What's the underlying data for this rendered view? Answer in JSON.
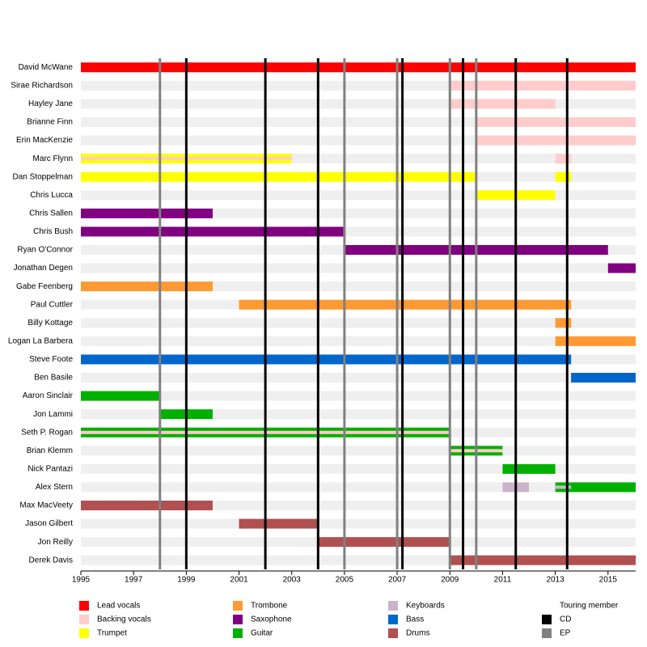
{
  "chart_data": {
    "type": "timeline",
    "xlim": [
      1995,
      2016.05
    ],
    "xticks": [
      1995,
      1997,
      1999,
      2001,
      2003,
      2005,
      2007,
      2009,
      2011,
      2013,
      2015
    ],
    "roles": [
      {
        "name": "Lead vocals",
        "color": "#ff0000"
      },
      {
        "name": "Backing vocals",
        "color": "#ffcccc"
      },
      {
        "name": "Trumpet",
        "color": "#ffff00"
      },
      {
        "name": "Trombone",
        "color": "#ff9933"
      },
      {
        "name": "Saxophone",
        "color": "#800080"
      },
      {
        "name": "Guitar",
        "color": "#00b000"
      },
      {
        "name": "Keyboards",
        "color": "#ccb3cc"
      },
      {
        "name": "Bass",
        "color": "#0066cc"
      },
      {
        "name": "Drums",
        "color": "#b05050"
      }
    ],
    "legend_header": "Touring member",
    "releases": [
      {
        "name": "CD",
        "color": "#000000",
        "dates": [
          1999,
          2002,
          2004,
          2007.2,
          2009.5,
          2011.5,
          2013.45
        ]
      },
      {
        "name": "EP",
        "color": "#808080",
        "dates": [
          1998,
          2005,
          2007,
          2009,
          2010
        ]
      }
    ],
    "members": [
      {
        "name": "David McWane",
        "bars": [
          {
            "role": "Lead vocals",
            "start": 1995,
            "end": 2016.05
          }
        ]
      },
      {
        "name": "Sirae Richardson",
        "bars": [
          {
            "role": "Backing vocals",
            "start": 2009,
            "end": 2016.05
          }
        ]
      },
      {
        "name": "Hayley Jane",
        "bars": [
          {
            "role": "Backing vocals",
            "start": 2009,
            "end": 2013
          }
        ]
      },
      {
        "name": "Brianne Finn",
        "bars": [
          {
            "role": "Backing vocals",
            "start": 2010,
            "end": 2016.05
          }
        ]
      },
      {
        "name": "Erin MacKenzie",
        "bars": [
          {
            "role": "Backing vocals",
            "start": 2010,
            "end": 2016.05
          }
        ]
      },
      {
        "name": "Marc Flynn",
        "bars": [
          {
            "role": "Trumpet",
            "stripe": "Backing vocals",
            "start": 1995,
            "end": 2003
          },
          {
            "role": "Backing vocals",
            "start": 2013,
            "end": 2013.6
          }
        ]
      },
      {
        "name": "Dan Stoppelman",
        "bars": [
          {
            "role": "Trumpet",
            "start": 1995,
            "end": 2010
          },
          {
            "role": "Trumpet",
            "start": 2013,
            "end": 2013.6
          }
        ]
      },
      {
        "name": "Chris Lucca",
        "bars": [
          {
            "role": "Trumpet",
            "start": 2010,
            "end": 2013
          }
        ]
      },
      {
        "name": "Chris Sallen",
        "bars": [
          {
            "role": "Saxophone",
            "start": 1995,
            "end": 2000
          }
        ]
      },
      {
        "name": "Chris Bush",
        "bars": [
          {
            "role": "Saxophone",
            "start": 1995,
            "end": 2005
          }
        ]
      },
      {
        "name": "Ryan O'Connor",
        "bars": [
          {
            "role": "Saxophone",
            "start": 2005,
            "end": 2015
          }
        ]
      },
      {
        "name": "Jonathan Degen",
        "bars": [
          {
            "role": "Saxophone",
            "start": 2015,
            "end": 2016.05
          }
        ]
      },
      {
        "name": "Gabe Feenberg",
        "bars": [
          {
            "role": "Trombone",
            "start": 1995,
            "end": 2000
          }
        ]
      },
      {
        "name": "Paul Cuttler",
        "bars": [
          {
            "role": "Trombone",
            "start": 2001,
            "end": 2013.6
          }
        ]
      },
      {
        "name": "Billy Kottage",
        "bars": [
          {
            "role": "Trombone",
            "start": 2013,
            "end": 2013.6
          }
        ]
      },
      {
        "name": "Logan La Barbera",
        "bars": [
          {
            "role": "Trombone",
            "start": 2013,
            "end": 2016.05
          }
        ]
      },
      {
        "name": "Steve Foote",
        "bars": [
          {
            "role": "Bass",
            "start": 1995,
            "end": 2013.6
          }
        ]
      },
      {
        "name": "Ben Basile",
        "bars": [
          {
            "role": "Bass",
            "start": 2013.6,
            "end": 2016.05
          }
        ]
      },
      {
        "name": "Aaron Sinclair",
        "bars": [
          {
            "role": "Guitar",
            "start": 1995,
            "end": 1998
          }
        ]
      },
      {
        "name": "Jon Lammi",
        "bars": [
          {
            "role": "Guitar",
            "start": 1998,
            "end": 2000
          }
        ]
      },
      {
        "name": "Seth P. Rogan",
        "bars": [
          {
            "role": "Guitar",
            "stripe": "Backing vocals",
            "start": 1995,
            "end": 2009
          }
        ]
      },
      {
        "name": "Brian Klemm",
        "bars": [
          {
            "role": "Guitar",
            "stripe": "Backing vocals",
            "start": 2009,
            "end": 2011
          }
        ]
      },
      {
        "name": "Nick Pantazi",
        "bars": [
          {
            "role": "Guitar",
            "start": 2011,
            "end": 2013
          }
        ]
      },
      {
        "name": "Alex Stern",
        "bars": [
          {
            "role": "Keyboards",
            "start": 2011,
            "end": 2012
          },
          {
            "role": "Guitar",
            "stripe": "Keyboards",
            "start": 2013,
            "end": 2013.6
          },
          {
            "role": "Guitar",
            "start": 2013.6,
            "end": 2016.05
          }
        ]
      },
      {
        "name": "Max MacVeety",
        "bars": [
          {
            "role": "Drums",
            "start": 1995,
            "end": 2000
          }
        ]
      },
      {
        "name": "Jason Gilbert",
        "bars": [
          {
            "role": "Drums",
            "start": 2001,
            "end": 2004
          }
        ]
      },
      {
        "name": "Jon Reilly",
        "bars": [
          {
            "role": "Drums",
            "start": 2004,
            "end": 2009
          }
        ]
      },
      {
        "name": "Derek Davis",
        "bars": [
          {
            "role": "Drums",
            "start": 2009,
            "end": 2016.05
          }
        ]
      }
    ]
  }
}
